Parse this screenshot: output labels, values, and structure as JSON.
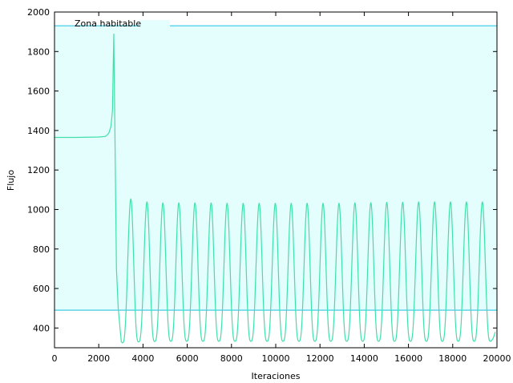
{
  "chart_data": {
    "type": "line",
    "xlabel": "Iteraciones",
    "ylabel": "Flujo",
    "xlim": [
      0,
      20000
    ],
    "ylim": [
      300,
      2000
    ],
    "xticks": [
      0,
      2000,
      4000,
      6000,
      8000,
      10000,
      12000,
      14000,
      16000,
      18000,
      20000
    ],
    "yticks": [
      400,
      600,
      800,
      1000,
      1200,
      1400,
      1600,
      1800,
      2000
    ],
    "grid": false,
    "legend": "top-left",
    "colors": {
      "zone_fill": "#e4fdfd",
      "zone_line": "#5fd4ec",
      "series": "#40e0a8"
    },
    "zone": {
      "name": "Zona habitable",
      "y_low": 490,
      "y_high": 1930
    },
    "series": [
      {
        "pre_peak": [
          [
            0,
            1365
          ],
          [
            1000,
            1365
          ],
          [
            2000,
            1367
          ],
          [
            2300,
            1370
          ],
          [
            2450,
            1385
          ],
          [
            2550,
            1420
          ],
          [
            2620,
            1500
          ],
          [
            2680,
            1890
          ],
          [
            2740,
            1300
          ],
          [
            2800,
            700
          ],
          [
            2880,
            500
          ],
          [
            2960,
            400
          ],
          [
            3020,
            330
          ]
        ],
        "peaks": [
          [
            3450,
            1055
          ],
          [
            4180,
            1040
          ],
          [
            4900,
            1035
          ],
          [
            5620,
            1035
          ],
          [
            6350,
            1035
          ],
          [
            7080,
            1035
          ],
          [
            7800,
            1033
          ],
          [
            8530,
            1033
          ],
          [
            9250,
            1033
          ],
          [
            9980,
            1033
          ],
          [
            10700,
            1033
          ],
          [
            11420,
            1033
          ],
          [
            12140,
            1033
          ],
          [
            12860,
            1033
          ],
          [
            13580,
            1035
          ],
          [
            14300,
            1036
          ],
          [
            15020,
            1038
          ],
          [
            15740,
            1038
          ],
          [
            16460,
            1040
          ],
          [
            17180,
            1040
          ],
          [
            17900,
            1040
          ],
          [
            18620,
            1040
          ],
          [
            19340,
            1040
          ]
        ],
        "troughs": [
          [
            3070,
            325
          ],
          [
            3800,
            330
          ],
          [
            4530,
            332
          ],
          [
            5260,
            333
          ],
          [
            5980,
            333
          ],
          [
            6710,
            333
          ],
          [
            7430,
            333
          ],
          [
            8160,
            333
          ],
          [
            8880,
            333
          ],
          [
            9610,
            333
          ],
          [
            10330,
            333
          ],
          [
            11050,
            333
          ],
          [
            11770,
            333
          ],
          [
            12490,
            333
          ],
          [
            13210,
            333
          ],
          [
            13930,
            333
          ],
          [
            14650,
            333
          ],
          [
            15370,
            333
          ],
          [
            16090,
            333
          ],
          [
            16810,
            333
          ],
          [
            17530,
            333
          ],
          [
            18250,
            333
          ],
          [
            18970,
            333
          ],
          [
            19700,
            333
          ]
        ]
      }
    ]
  }
}
